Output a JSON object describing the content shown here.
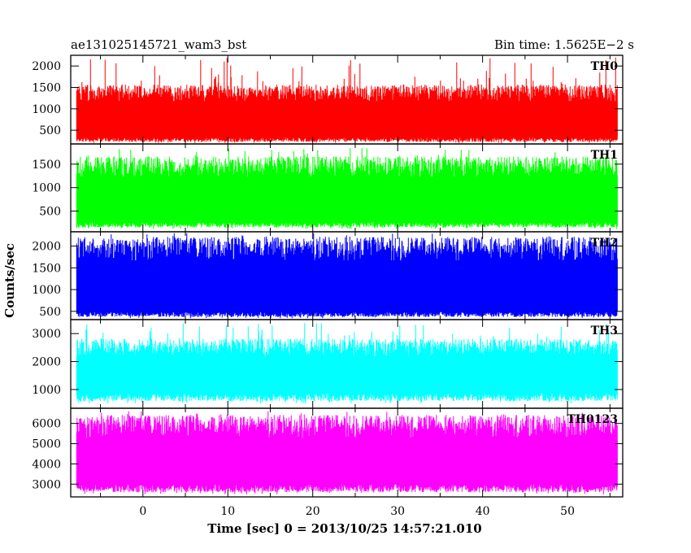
{
  "header": {
    "left_title": "ae131025145721_wam3_bst",
    "right_title": "Bin time: 1.5625E−2 s"
  },
  "chart_data": {
    "type": "line",
    "title": "ae131025145721_wam3_bst",
    "subtitle": "Bin time: 1.5625E−2 s",
    "xlabel": "Time [sec] 0 = 2013/10/25 14:57:21.010",
    "ylabel": "Counts/sec",
    "xlim": [
      -8.5,
      56.5
    ],
    "x_data_range": [
      -7.8,
      55.9
    ],
    "x_ticks": [
      0,
      10,
      20,
      30,
      40,
      50
    ],
    "panels": [
      {
        "name": "TH0",
        "color": "#ff0000",
        "ylim": [
          180,
          2250
        ],
        "y_ticks": [
          500,
          1000,
          1500,
          2000
        ],
        "typical_low": 330,
        "typical_high": 1270,
        "min": 200,
        "max": 2200
      },
      {
        "name": "TH1",
        "color": "#00ff00",
        "ylim": [
          60,
          1930
        ],
        "y_ticks": [
          500,
          1000,
          1500
        ],
        "typical_low": 270,
        "typical_high": 1330,
        "min": 120,
        "max": 1850
      },
      {
        "name": "TH2",
        "color": "#0000ff",
        "ylim": [
          310,
          2330
        ],
        "y_ticks": [
          500,
          1000,
          1500,
          2000
        ],
        "typical_low": 490,
        "typical_high": 1800,
        "min": 340,
        "max": 2300
      },
      {
        "name": "TH3",
        "color": "#00ffff",
        "ylim": [
          330,
          3500
        ],
        "y_ticks": [
          1000,
          2000,
          3000
        ],
        "typical_low": 880,
        "typical_high": 2350,
        "min": 500,
        "max": 3400
      },
      {
        "name": "TH0123",
        "color": "#ff00ff",
        "ylim": [
          2370,
          6750
        ],
        "y_ticks": [
          3000,
          4000,
          5000,
          6000
        ],
        "typical_low": 3000,
        "typical_high": 5600,
        "min": 2500,
        "max": 6600
      }
    ]
  }
}
